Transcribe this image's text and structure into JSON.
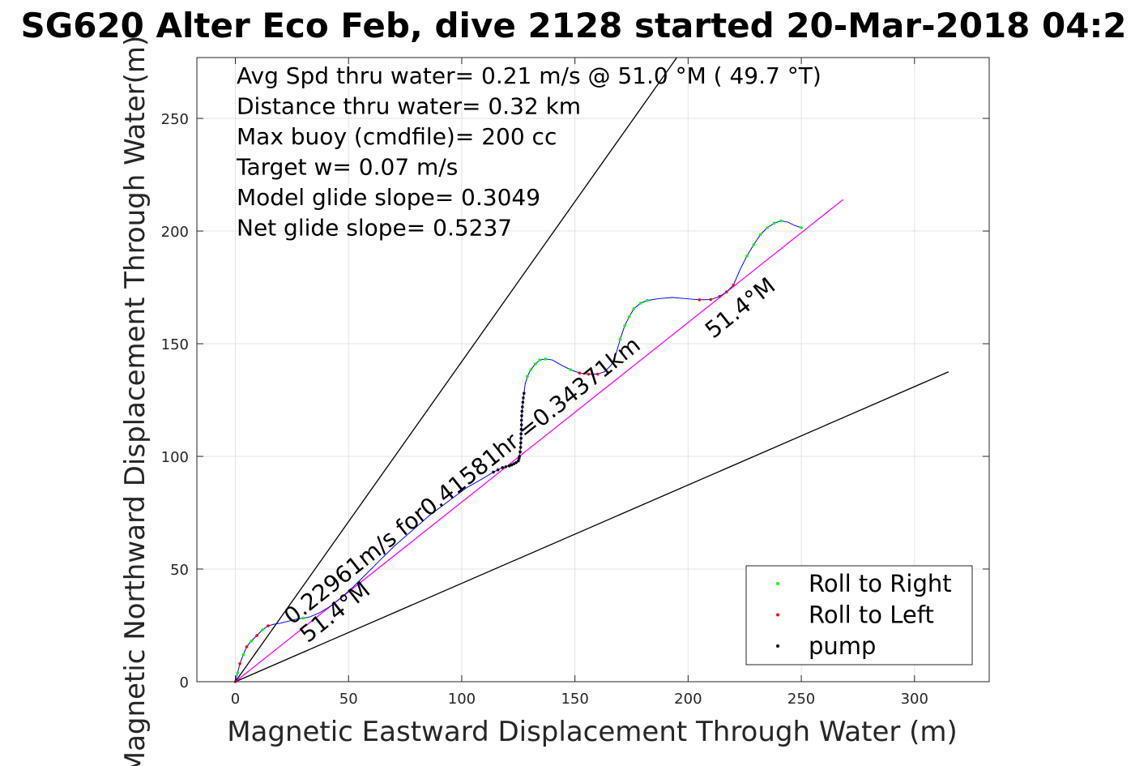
{
  "chart_data": {
    "type": "scatter",
    "title": "SG620 Alter Eco Feb, dive 2128 started 20-Mar-2018 04:2",
    "xlabel": "Magnetic Eastward Displacement Through Water (m)",
    "ylabel": "Magnetic Northward Displacement Through Water(m)",
    "xlim": [
      -17,
      333
    ],
    "ylim": [
      0,
      277
    ],
    "xticks": [
      0,
      50,
      100,
      150,
      200,
      250,
      300
    ],
    "yticks": [
      0,
      50,
      100,
      150,
      200,
      250
    ],
    "grid": true,
    "legend_position": "bottom-right",
    "annotations": [
      "Avg Spd thru water=  0.21 m/s @  51.0 °M ( 49.7 °T)",
      "Distance thru water=  0.32 km",
      "Max buoy (cmdfile)= 200 cc",
      "Target w= 0.07 m/s",
      "Model glide slope= 0.3049",
      "Net glide slope= 0.5237"
    ],
    "in_plot_labels": {
      "speed": "0.22961m/s for0.41581hr =0.34371km",
      "heading_lower": "51.4°M",
      "heading_upper": "51.4°M"
    },
    "reference_lines": [
      {
        "name": "steep-glide-line",
        "color": "#000000",
        "points": [
          [
            0,
            0
          ],
          [
            195,
            277
          ]
        ]
      },
      {
        "name": "shallow-glide-line",
        "color": "#000000",
        "points": [
          [
            0,
            0
          ],
          [
            315,
            137.5
          ]
        ]
      },
      {
        "name": "heading-line",
        "color": "#ff00ff",
        "points": [
          [
            0,
            0
          ],
          [
            268.5,
            214
          ]
        ]
      }
    ],
    "series": [
      {
        "name": "trajectory-line",
        "color": "#0000ff",
        "points": [
          [
            0,
            0
          ],
          [
            1,
            4
          ],
          [
            2,
            8
          ],
          [
            3.5,
            12
          ],
          [
            5,
            15.5
          ],
          [
            7,
            18
          ],
          [
            9.5,
            20.5
          ],
          [
            12,
            23
          ],
          [
            14.5,
            24.8
          ],
          [
            17,
            25.5
          ],
          [
            20,
            26
          ],
          [
            24,
            27
          ],
          [
            27,
            27.8
          ],
          [
            30,
            28.2
          ],
          [
            33,
            28.8
          ],
          [
            37,
            30.5
          ],
          [
            42,
            33.5
          ],
          [
            47,
            37.5
          ],
          [
            52,
            42
          ],
          [
            57,
            47
          ],
          [
            63,
            53
          ],
          [
            70,
            60
          ],
          [
            78,
            67
          ],
          [
            86,
            74
          ],
          [
            94,
            80
          ],
          [
            102,
            86
          ],
          [
            109,
            90
          ],
          [
            114,
            93
          ],
          [
            118,
            95
          ],
          [
            121,
            95.8
          ],
          [
            123,
            96.7
          ],
          [
            125,
            98
          ],
          [
            125.5,
            100
          ],
          [
            126,
            104
          ],
          [
            126.2,
            110
          ],
          [
            126.5,
            118
          ],
          [
            127,
            124
          ],
          [
            127.5,
            128
          ],
          [
            128,
            132
          ],
          [
            129,
            135.5
          ],
          [
            130.5,
            138.5
          ],
          [
            132.5,
            141
          ],
          [
            134.5,
            142.8
          ],
          [
            137,
            143.2
          ],
          [
            140,
            142.8
          ],
          [
            144,
            140.5
          ],
          [
            148,
            138.5
          ],
          [
            152,
            137
          ],
          [
            156,
            136.5
          ],
          [
            160,
            136.5
          ],
          [
            163,
            137.5
          ],
          [
            166,
            140.5
          ],
          [
            168,
            145
          ],
          [
            170,
            152
          ],
          [
            172,
            158
          ],
          [
            174,
            162
          ],
          [
            176,
            165.5
          ],
          [
            179,
            168
          ],
          [
            182,
            169.2
          ],
          [
            187,
            170
          ],
          [
            193,
            170.5
          ],
          [
            199,
            170
          ],
          [
            205,
            169.5
          ],
          [
            210,
            169.6
          ],
          [
            214,
            171
          ],
          [
            217,
            173
          ],
          [
            220,
            176
          ],
          [
            223,
            183
          ],
          [
            226,
            189
          ],
          [
            229,
            194
          ],
          [
            232,
            198.5
          ],
          [
            235,
            201.5
          ],
          [
            238,
            203.5
          ],
          [
            241,
            204.5
          ],
          [
            244,
            204
          ],
          [
            247,
            202.5
          ],
          [
            250,
            201.5
          ]
        ]
      },
      {
        "name": "Roll to Right",
        "color": "#00ff00",
        "points": [
          [
            1,
            4
          ],
          [
            3.5,
            12
          ],
          [
            7,
            18
          ],
          [
            12,
            23
          ],
          [
            30,
            28.2
          ],
          [
            129,
            135.5
          ],
          [
            130.5,
            138.5
          ],
          [
            132.5,
            141
          ],
          [
            134.5,
            142.8
          ],
          [
            137,
            143.2
          ],
          [
            148,
            138.5
          ],
          [
            170,
            152
          ],
          [
            172,
            158
          ],
          [
            174,
            162
          ],
          [
            176,
            165.5
          ],
          [
            179,
            168
          ],
          [
            182,
            169.2
          ],
          [
            226,
            189
          ],
          [
            229,
            194
          ],
          [
            232,
            198.5
          ],
          [
            235,
            201.5
          ],
          [
            238,
            203.5
          ],
          [
            241,
            204.5
          ],
          [
            250,
            201.5
          ]
        ]
      },
      {
        "name": "Roll to Left",
        "color": "#ff0000",
        "points": [
          [
            0,
            0
          ],
          [
            2,
            8
          ],
          [
            5,
            15.5
          ],
          [
            9.5,
            20.5
          ],
          [
            14.5,
            24.8
          ],
          [
            152,
            137
          ],
          [
            156,
            136.5
          ],
          [
            160,
            136.5
          ],
          [
            205,
            169.5
          ],
          [
            210,
            169.6
          ],
          [
            214,
            171
          ],
          [
            217,
            173
          ],
          [
            220,
            176
          ]
        ]
      },
      {
        "name": "pump",
        "color": "#000000",
        "points": [
          [
            114,
            93
          ],
          [
            116,
            94
          ],
          [
            118,
            95
          ],
          [
            119.5,
            95.4
          ],
          [
            121,
            95.8
          ],
          [
            122,
            96.2
          ],
          [
            123,
            96.7
          ],
          [
            124,
            97.2
          ],
          [
            125,
            98
          ],
          [
            125.3,
            99
          ],
          [
            125.5,
            100
          ],
          [
            125.8,
            102
          ],
          [
            126,
            104
          ],
          [
            126.1,
            106
          ],
          [
            126.2,
            108
          ],
          [
            126.2,
            110
          ],
          [
            126.3,
            112
          ],
          [
            126.4,
            114
          ],
          [
            126.4,
            116
          ],
          [
            126.5,
            118
          ],
          [
            126.6,
            120
          ],
          [
            126.8,
            122
          ],
          [
            127,
            124
          ],
          [
            127.2,
            126
          ],
          [
            127.5,
            128
          ]
        ]
      }
    ]
  }
}
